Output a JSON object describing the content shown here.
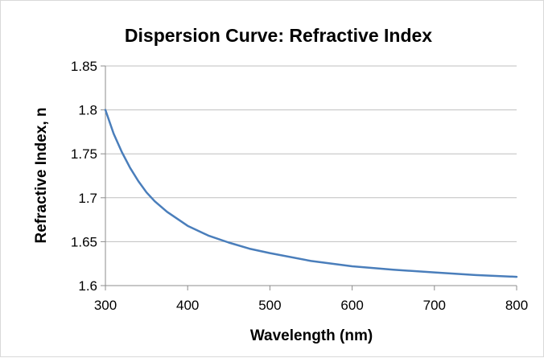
{
  "chart_data": {
    "type": "line",
    "title": "Dispersion Curve:  Refractive Index",
    "xlabel": "Wavelength (nm)",
    "ylabel": "Refractive Index, n",
    "xlim": [
      300,
      800
    ],
    "ylim": [
      1.6,
      1.85
    ],
    "x_ticks": [
      300,
      400,
      500,
      600,
      700,
      800
    ],
    "y_ticks": [
      1.6,
      1.65,
      1.7,
      1.75,
      1.8,
      1.85
    ],
    "x_tick_labels": [
      "300",
      "400",
      "500",
      "600",
      "700",
      "800"
    ],
    "y_tick_labels": [
      "1.6",
      "1.65",
      "1.7",
      "1.75",
      "1.8",
      "1.85"
    ],
    "grid": "horizontal",
    "legend": "none",
    "series_color": "#4a7ebb",
    "series": [
      {
        "x": [
          300,
          310,
          320,
          330,
          340,
          350,
          360,
          375,
          400,
          425,
          450,
          475,
          500,
          550,
          600,
          650,
          700,
          750,
          800
        ],
        "y": [
          1.8,
          1.773,
          1.752,
          1.734,
          1.719,
          1.706,
          1.696,
          1.684,
          1.668,
          1.657,
          1.649,
          1.642,
          1.637,
          1.628,
          1.622,
          1.618,
          1.615,
          1.612,
          1.61
        ]
      }
    ]
  }
}
